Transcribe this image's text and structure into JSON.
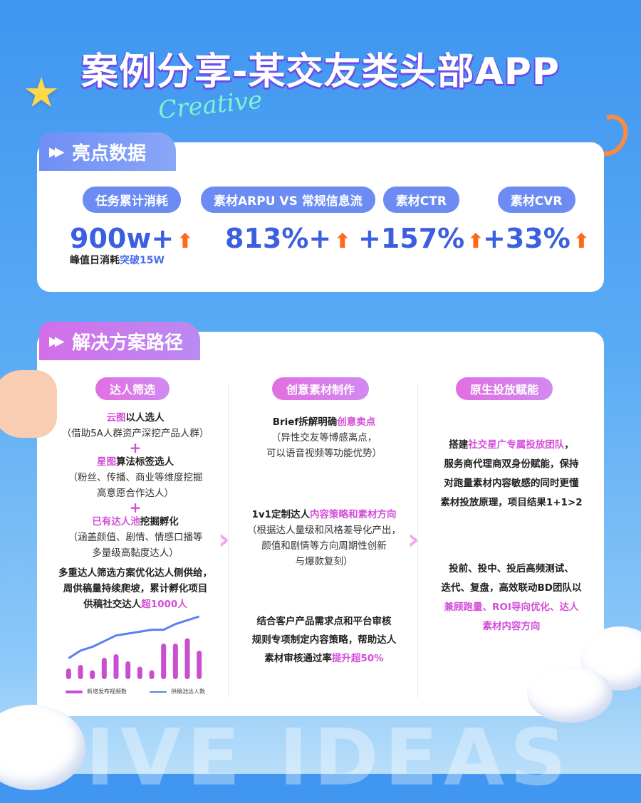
{
  "title": "案例分享-某交友类头部APP",
  "subtitle_script": "Creative",
  "background_text": "IVE IDEAS",
  "highlights": {
    "tab": "亮点数据",
    "metrics": [
      {
        "label": "任务累计消耗",
        "value": "900w+",
        "note_prefix": "峰值日消耗",
        "note_highlight": "突破15W"
      },
      {
        "label": "素材ARPU VS 常规信息流",
        "value": "813%+"
      },
      {
        "label": "素材CTR",
        "value": "+157%"
      },
      {
        "label": "素材CVR",
        "value": "+33%"
      }
    ],
    "arrow_icon": "arrow-up-icon"
  },
  "solution": {
    "tab": "解决方案路径",
    "col1": {
      "title": "达人筛选",
      "l1a": "云图",
      "l1b": "以人选人",
      "l1c": "（借助5A人群资产深挖产品人群）",
      "plus": "+",
      "l2a": "星图",
      "l2b": "算法标签选人",
      "l2c": "（粉丝、传播、商业等维度挖掘",
      "l2d": "高意愿合作达人）",
      "l3a": "已有达人池",
      "l3b": "挖掘孵化",
      "l3c": "（涵盖颜值、剧情、情感口播等",
      "l3d": "多量级高黏度达人）",
      "s1": "多重达人筛选方案优化达人侧供给，",
      "s2": "周供稿量持续爬坡，累计孵化项目",
      "s3": "供稿社交达人",
      "s3h": "超1000人"
    },
    "col2": {
      "title": "创意素材制作",
      "a1": "Brief拆解明确",
      "a1h": "创意卖点",
      "a2": "（异性交友等博感离点，",
      "a3": "可以语音视频等功能优势）",
      "b1": "1v1定制达人",
      "b1h": "内容策略和素材方向",
      "b2": "（根据达人量级和风格差导化产出，",
      "b3": "颜值和剧情等方向周期性创新",
      "b4": "与爆款复刻）",
      "c1": "结合客户产品需求点和平台审核",
      "c2": "规则专项制定内容策略，帮助达人",
      "c3": "素材审核通过率",
      "c3h": "提升超50%"
    },
    "col3": {
      "title": "原生投放赋能",
      "a1": "搭建",
      "a1h": "社交星广专属投放团队",
      "a1e": "，",
      "a2": "服务商代理商双身份赋能，保持",
      "a3": "对跑量素材内容敏感的同时更懂",
      "a4": "素材投放原理，项目结果1+1>2",
      "b1": "投前、投中、投后高频测试、",
      "b2": "迭代、复盘，高效联动BD团队以",
      "b3h": "兼顾跑量、ROI导向优化、达人",
      "b4h": "素材内容方向"
    }
  },
  "chart_data": {
    "type": "bar+line",
    "legend_position": "bottom",
    "grid": false,
    "series": [
      {
        "name": "新增发布视频数",
        "type": "bar",
        "color": "#c94fd0",
        "values": [
          3,
          4,
          2.5,
          6,
          7,
          5,
          3.5,
          2.5,
          10,
          10,
          11.5,
          8
        ]
      },
      {
        "name": "供稿池达人数",
        "type": "line",
        "color": "#5b7ff0",
        "values": [
          1,
          3,
          4,
          5.5,
          7,
          7.5,
          8,
          8.5,
          8.5,
          10,
          11,
          12
        ]
      }
    ]
  }
}
